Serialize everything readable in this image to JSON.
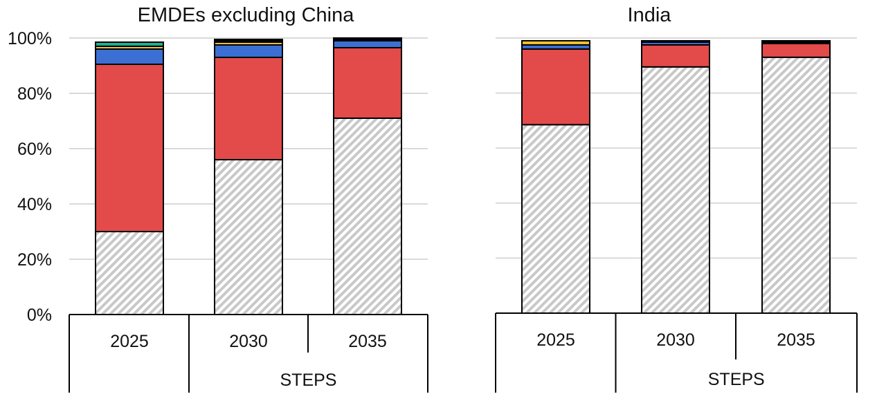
{
  "chart_data": [
    {
      "type": "bar",
      "stacked": true,
      "title": "EMDEs excluding China",
      "categories": [
        "2025",
        "2030",
        "2035"
      ],
      "group_labels": [
        "",
        "STEPS"
      ],
      "y_ticks": [
        "0%",
        "20%",
        "40%",
        "60%",
        "80%",
        "100%"
      ],
      "ylim": [
        0,
        100
      ],
      "grid": true,
      "series": [
        {
          "pattern": "hatched-gray",
          "values": [
            30,
            56,
            71
          ]
        },
        {
          "color": "#e34a4a",
          "values": [
            60.5,
            37,
            25.5
          ]
        },
        {
          "color": "#3b6fd4",
          "values": [
            5.5,
            4.5,
            2.5
          ]
        },
        {
          "color": "#f2c12e",
          "values": [
            1,
            1,
            0.5
          ]
        },
        {
          "color": "#1fae96",
          "values": [
            1.5,
            0.5,
            0
          ]
        },
        {
          "color": "#1f2d5a",
          "values": [
            0,
            0.5,
            0.5
          ]
        }
      ]
    },
    {
      "type": "bar",
      "stacked": true,
      "title": "India",
      "categories": [
        "2025",
        "2030",
        "2035"
      ],
      "group_labels": [
        "",
        "STEPS"
      ],
      "ylim": [
        0,
        100
      ],
      "grid": true,
      "series": [
        {
          "pattern": "hatched-gray",
          "values": [
            68.5,
            89.5,
            93
          ]
        },
        {
          "color": "#e34a4a",
          "values": [
            27.5,
            8,
            5
          ]
        },
        {
          "color": "#3b6fd4",
          "values": [
            1.5,
            1,
            0.5
          ]
        },
        {
          "color": "#f2c12e",
          "values": [
            1.5,
            0,
            0
          ]
        },
        {
          "color": "#1f2d5a",
          "values": [
            0,
            0.5,
            0.5
          ]
        }
      ]
    }
  ]
}
